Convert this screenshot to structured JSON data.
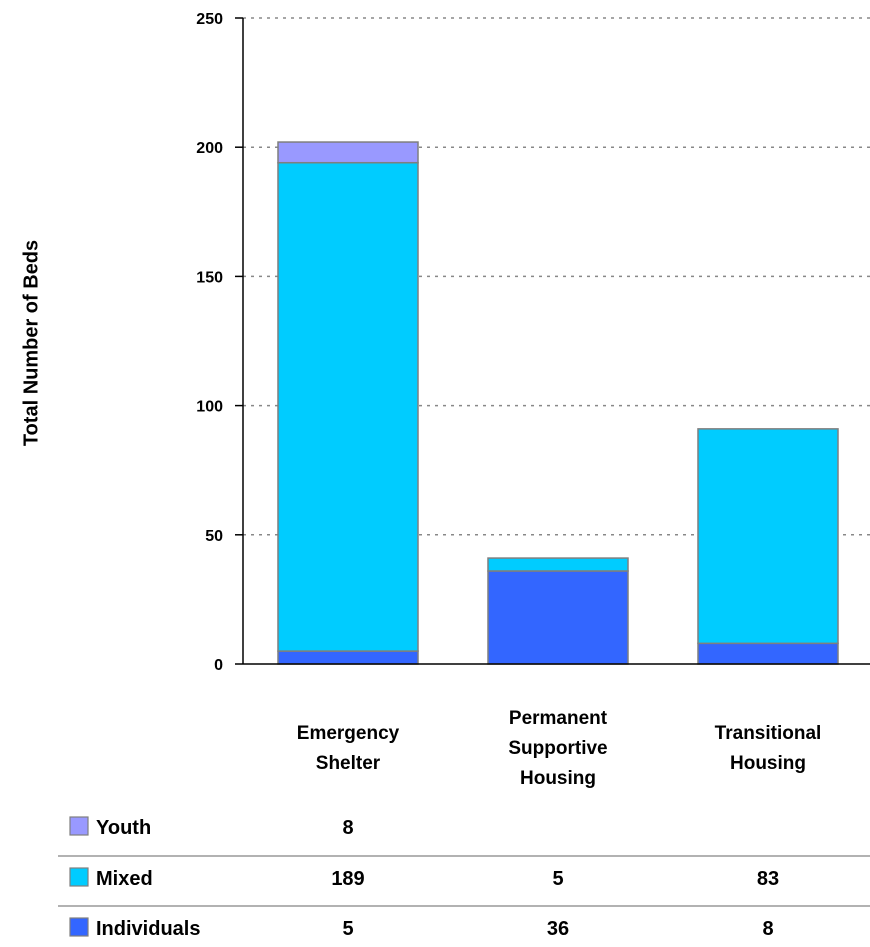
{
  "chart_data": {
    "type": "bar",
    "stacked": true,
    "ylabel": "Total Number of Beds",
    "xlabel": "",
    "title": "",
    "ylim": [
      0,
      250
    ],
    "yticks": [
      0,
      50,
      100,
      150,
      200,
      250
    ],
    "grid": true,
    "legend_placement": "data-table-below",
    "categories": [
      [
        "Emergency",
        "Shelter"
      ],
      [
        "Permanent",
        "Supportive",
        "Housing"
      ],
      [
        "Transitional",
        "Housing"
      ]
    ],
    "series": [
      {
        "name": "Individuals",
        "color": "#3366ff",
        "values": [
          5,
          36,
          8
        ]
      },
      {
        "name": "Mixed",
        "color": "#00ccff",
        "values": [
          189,
          5,
          83
        ]
      },
      {
        "name": "Youth",
        "color": "#9999ff",
        "values": [
          8,
          null,
          null
        ]
      }
    ],
    "table_rows": [
      {
        "name": "Youth",
        "color": "#9999ff",
        "cells": [
          "8",
          "",
          ""
        ]
      },
      {
        "name": "Mixed",
        "color": "#00ccff",
        "cells": [
          "189",
          "5",
          "83"
        ]
      },
      {
        "name": "Individuals",
        "color": "#3366ff",
        "cells": [
          "5",
          "36",
          "8"
        ]
      }
    ]
  }
}
